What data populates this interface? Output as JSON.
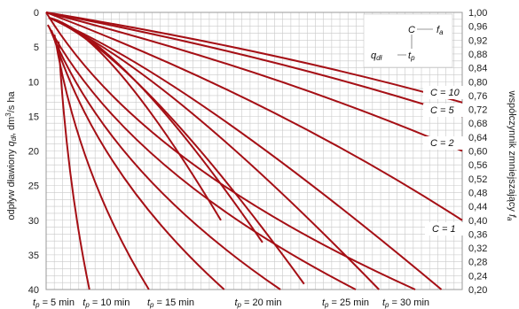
{
  "chart_data": {
    "type": "line",
    "y_left": {
      "label_prefix": "odpływ dławiony ",
      "label_var": "q",
      "label_var_sub": "dł",
      "label_suffix": ", dm",
      "label_sup": "3",
      "label_end": "/s ha",
      "ticks": [
        "0",
        "5",
        "10",
        "15",
        "20",
        "25",
        "30",
        "35",
        "40"
      ],
      "range": [
        0,
        40
      ]
    },
    "y_right": {
      "label_prefix": "współczynnik zmniejszający ",
      "label_var": "f",
      "label_var_sub": "a",
      "ticks": [
        "1,00",
        "0,96",
        "0,92",
        "0,88",
        "0,84",
        "0,80",
        "0,76",
        "0,72",
        "0,68",
        "0,64",
        "0,60",
        "0,56",
        "0,52",
        "0,48",
        "0,44",
        "0,40",
        "0,36",
        "0,32",
        "0,28",
        "0,24",
        "0,20"
      ],
      "range": [
        1.0,
        0.2
      ]
    },
    "tp_lines": [
      {
        "label_var": "t",
        "label_sub": "p",
        "label_text": " = 5 min",
        "bottom": 0.104
      },
      {
        "label_var": "t",
        "label_sub": "p",
        "label_text": " = 10 min",
        "bottom": 0.247
      },
      {
        "label_var": "t",
        "label_sub": "p",
        "label_text": " = 15 min",
        "bottom": 0.428
      },
      {
        "label_var": "t",
        "label_sub": "p",
        "label_text": " = 20 min",
        "bottom": 0.563
      },
      {
        "label_var": "t",
        "label_sub": "p",
        "label_text": " = 25 min",
        "bottom": 0.744
      },
      {
        "label_var": "t",
        "label_sub": "p",
        "label_text": " = 30 min",
        "bottom": 0.887
      }
    ],
    "c_lines": [
      {
        "label": "C = 10",
        "fa_end": 0.74
      },
      {
        "label": "C = 5",
        "fa_end": 0.7
      },
      {
        "label": "C = 2",
        "fa_end": 0.6
      },
      {
        "label": "C = 1",
        "fa_end": 0.4
      }
    ],
    "inset": {
      "C": "C",
      "fa_var": "f",
      "fa_sub": "a",
      "qdl_var": "q",
      "qdl_sub": "dł",
      "tp_var": "t",
      "tp_sub": "p"
    },
    "colors": {
      "curve": "#a50f15",
      "grid": "#c9c9c9",
      "frame": "#9a9a9a"
    },
    "grid": true
  }
}
